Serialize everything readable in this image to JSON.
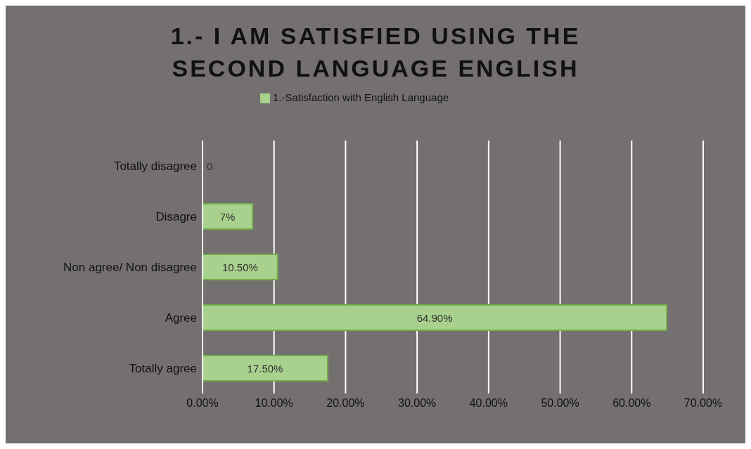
{
  "chart_data": {
    "type": "bar",
    "orientation": "horizontal",
    "title": "1.- I AM SATISFIED USING THE SECOND LANGUAGE ENGLISH",
    "categories": [
      "Totally disagree",
      "Disagre",
      "Non agree/ Non disagree",
      "Agree",
      "Totally agree"
    ],
    "series": [
      {
        "name": "1.-Satisfaction with English Language",
        "color": "#a9d18e",
        "values": [
          0,
          7,
          10.5,
          64.9,
          17.5
        ],
        "value_labels": [
          "0",
          "7%",
          "10.50%",
          "64.90%",
          "17.50%"
        ]
      }
    ],
    "xlim": [
      0,
      70
    ],
    "xticks": [
      {
        "value": 0,
        "label": "0.00%"
      },
      {
        "value": 10,
        "label": "10.00%"
      },
      {
        "value": 20,
        "label": "20.00%"
      },
      {
        "value": 30,
        "label": "30.00%"
      },
      {
        "value": 40,
        "label": "40.00%"
      },
      {
        "value": 50,
        "label": "50.00%"
      },
      {
        "value": 60,
        "label": "60.00%"
      },
      {
        "value": 70,
        "label": "70.00%"
      }
    ],
    "grid": "x",
    "legend": "top"
  }
}
